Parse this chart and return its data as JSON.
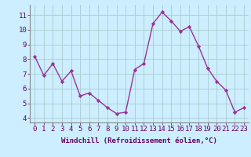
{
  "x": [
    0,
    1,
    2,
    3,
    4,
    5,
    6,
    7,
    8,
    9,
    10,
    11,
    12,
    13,
    14,
    15,
    16,
    17,
    18,
    19,
    20,
    21,
    22,
    23
  ],
  "y": [
    8.2,
    6.9,
    7.7,
    6.5,
    7.2,
    5.5,
    5.7,
    5.2,
    4.7,
    4.3,
    4.4,
    7.3,
    7.7,
    10.4,
    11.2,
    10.6,
    9.9,
    10.2,
    8.9,
    7.4,
    6.5,
    5.9,
    4.4,
    4.7
  ],
  "line_color": "#993399",
  "marker": "D",
  "marker_size": 2.2,
  "bg_color": "#cceeff",
  "grid_color": "#aacccc",
  "xlabel": "Windchill (Refroidissement éolien,°C)",
  "xlabel_fontsize": 6.5,
  "xtick_labels": [
    "0",
    "1",
    "2",
    "3",
    "4",
    "5",
    "6",
    "7",
    "8",
    "9",
    "10",
    "11",
    "12",
    "13",
    "14",
    "15",
    "16",
    "17",
    "18",
    "19",
    "20",
    "21",
    "22",
    "23"
  ],
  "ytick_vals": [
    4,
    5,
    6,
    7,
    8,
    9,
    10,
    11
  ],
  "ytick_labels": [
    "4",
    "5",
    "6",
    "7",
    "8",
    "9",
    "10",
    "11"
  ],
  "ylim": [
    3.7,
    11.7
  ],
  "xlim": [
    -0.5,
    23.5
  ],
  "tick_fontsize": 6.5,
  "label_color": "#660066",
  "spine_color": "#888888",
  "linewidth": 1.0
}
